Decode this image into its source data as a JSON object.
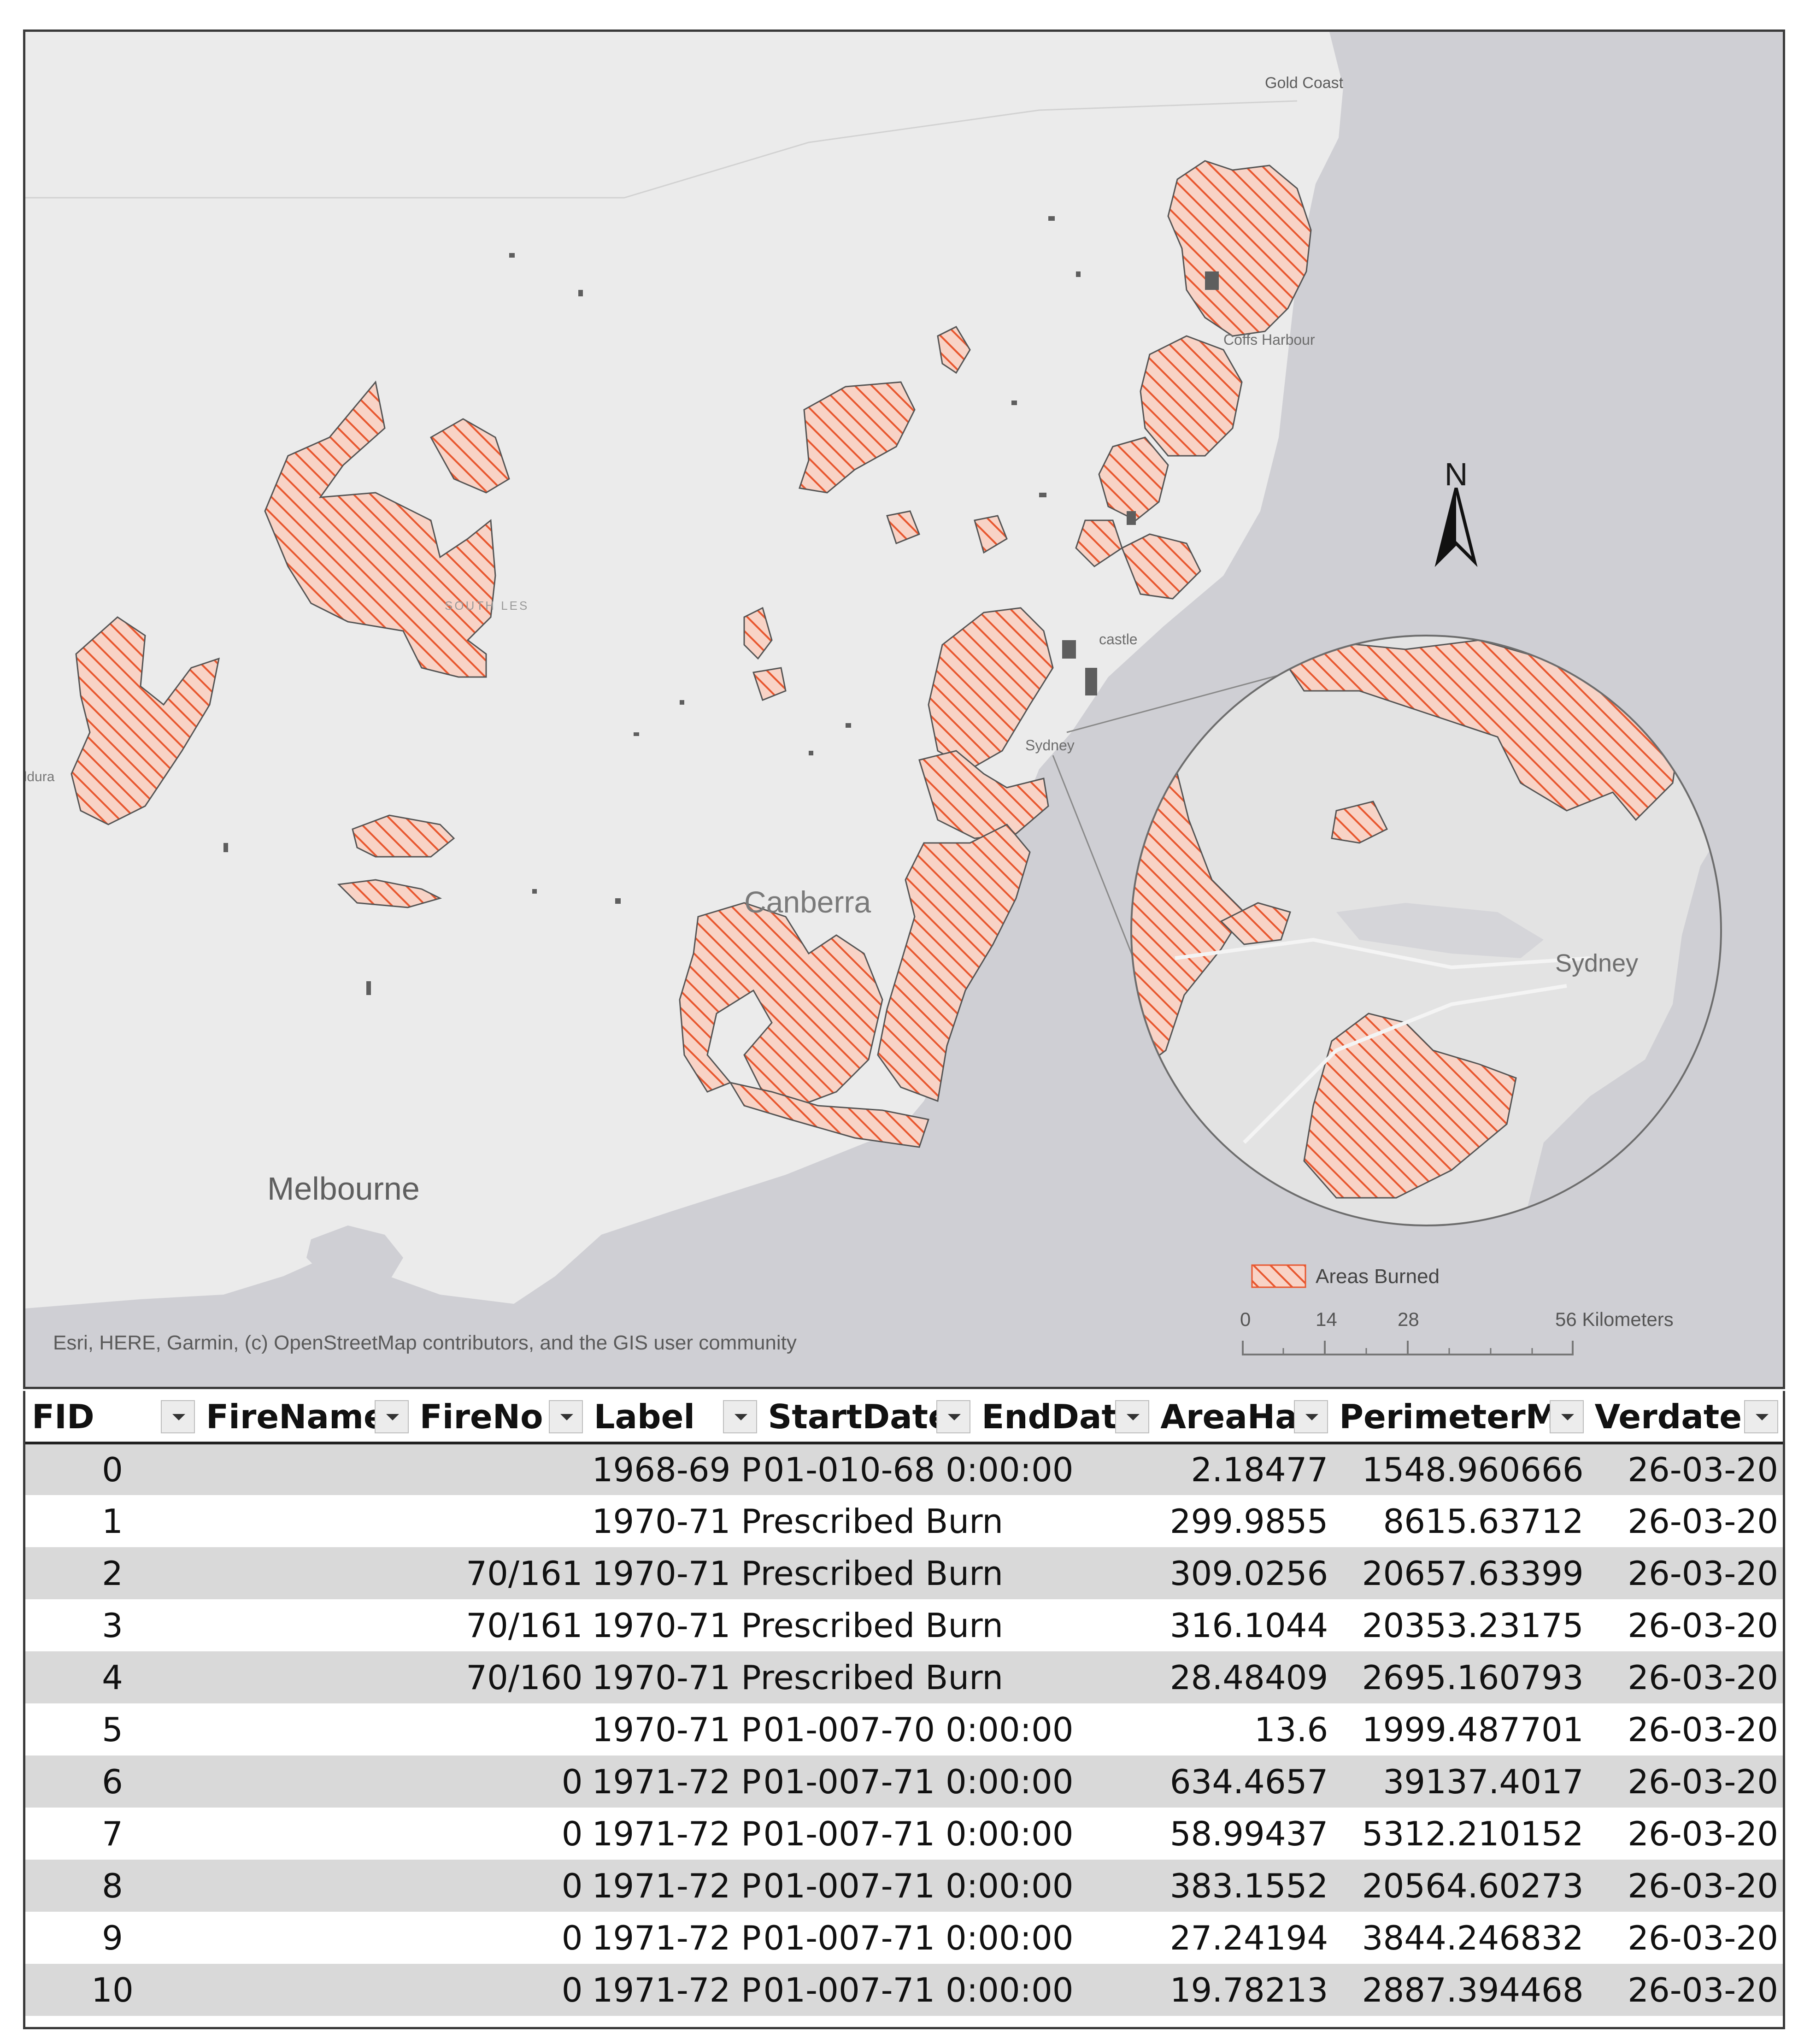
{
  "map": {
    "labels": {
      "gold_coast": "Gold Coast",
      "coffs_harbour": "Coffs Harbour",
      "newcastle": "castle",
      "sydney_small": "Sydney",
      "canberra": "Canberra",
      "melbourne": "Melbourne",
      "mildura": "ildura",
      "nsw": "SOUTH  LES",
      "sydney_inset": "Sydney"
    },
    "north_arrow": "N",
    "legend": {
      "label": "Areas Burned",
      "swatch_color": "#e8572f",
      "hatch": "diagonal"
    },
    "scale_bar": {
      "ticks": [
        "0",
        "14",
        "28",
        "56 Kilometers"
      ]
    },
    "attribution": "Esri, HERE, Garmin, (c) OpenStreetMap contributors, and the GIS user community",
    "colors": {
      "land": "#ebebeb",
      "water": "#cfcfd4",
      "burn_fill": "#f8d3c6",
      "burn_hatch": "#e8572f",
      "burn_outline": "#555555"
    }
  },
  "table": {
    "columns": [
      "FID",
      "FireName",
      "FireNo",
      "Label",
      "StartDate",
      "EndDate",
      "AreaHa",
      "PerimeterM",
      "Verdate"
    ],
    "rows": [
      {
        "fid": "0",
        "firename": "",
        "fireno": "",
        "label": "1968-69 P",
        "startdate": "01-010-68 0:00:00",
        "areaha": "2.18477",
        "perimeterm": "1548.960666",
        "verdate": "26-03-20"
      },
      {
        "fid": "1",
        "firename": "",
        "fireno": "",
        "label": "1970-71 Prescribed Burn",
        "startdate": "",
        "areaha": "299.9855",
        "perimeterm": "8615.63712",
        "verdate": "26-03-20"
      },
      {
        "fid": "2",
        "firename": "",
        "fireno": "70/161",
        "label": "1970-71 Prescribed Burn",
        "startdate": "",
        "areaha": "309.0256",
        "perimeterm": "20657.63399",
        "verdate": "26-03-20"
      },
      {
        "fid": "3",
        "firename": "",
        "fireno": "70/161",
        "label": "1970-71 Prescribed Burn",
        "startdate": "",
        "areaha": "316.1044",
        "perimeterm": "20353.23175",
        "verdate": "26-03-20"
      },
      {
        "fid": "4",
        "firename": "",
        "fireno": "70/160",
        "label": "1970-71 Prescribed Burn",
        "startdate": "",
        "areaha": "28.48409",
        "perimeterm": "2695.160793",
        "verdate": "26-03-20"
      },
      {
        "fid": "5",
        "firename": "",
        "fireno": "",
        "label": "1970-71 P",
        "startdate": "01-007-70 0:00:00",
        "areaha": "13.6",
        "perimeterm": "1999.487701",
        "verdate": "26-03-20"
      },
      {
        "fid": "6",
        "firename": "",
        "fireno": "0",
        "label": "1971-72 P",
        "startdate": "01-007-71 0:00:00",
        "areaha": "634.4657",
        "perimeterm": "39137.4017",
        "verdate": "26-03-20"
      },
      {
        "fid": "7",
        "firename": "",
        "fireno": "0",
        "label": "1971-72 P",
        "startdate": "01-007-71 0:00:00",
        "areaha": "58.99437",
        "perimeterm": "5312.210152",
        "verdate": "26-03-20"
      },
      {
        "fid": "8",
        "firename": "",
        "fireno": "0",
        "label": "1971-72 P",
        "startdate": "01-007-71 0:00:00",
        "areaha": "383.1552",
        "perimeterm": "20564.60273",
        "verdate": "26-03-20"
      },
      {
        "fid": "9",
        "firename": "",
        "fireno": "0",
        "label": "1971-72 P",
        "startdate": "01-007-71 0:00:00",
        "areaha": "27.24194",
        "perimeterm": "3844.246832",
        "verdate": "26-03-20"
      },
      {
        "fid": "10",
        "firename": "",
        "fireno": "0",
        "label": "1971-72 P",
        "startdate": "01-007-71 0:00:00",
        "areaha": "19.78213",
        "perimeterm": "2887.394468",
        "verdate": "26-03-20"
      }
    ]
  }
}
